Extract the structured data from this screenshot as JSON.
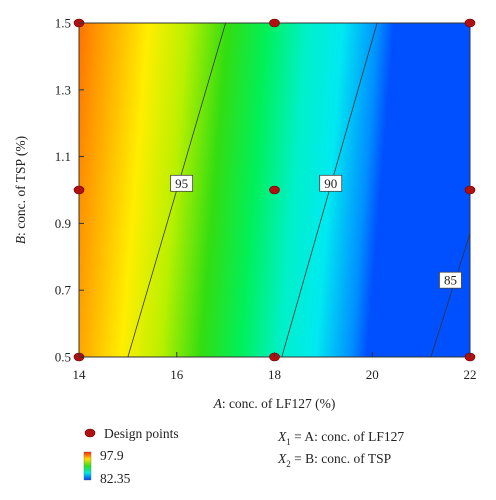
{
  "chart_data": {
    "type": "contour",
    "xlabel": {
      "prefix": "A",
      "text": ": conc. of LF127 (%)"
    },
    "ylabel": {
      "prefix": "B",
      "text": ": conc. of TSP (%)"
    },
    "xlim": [
      14,
      22
    ],
    "ylim": [
      0.5,
      1.5
    ],
    "xticks": [
      "14",
      "16",
      "18",
      "20",
      "22"
    ],
    "yticks": [
      "0.5",
      "0.7",
      "0.9",
      "1.1",
      "1.3",
      "1.5"
    ],
    "contours": [
      {
        "label": "95",
        "points": [
          [
            15.0,
            0.5
          ],
          [
            17.0,
            1.5
          ]
        ],
        "label_at": [
          16.1,
          1.02
        ]
      },
      {
        "label": "90",
        "points": [
          [
            18.15,
            0.5
          ],
          [
            20.1,
            1.5
          ]
        ],
        "label_at": [
          19.15,
          1.02
        ]
      },
      {
        "label": "85",
        "points": [
          [
            21.2,
            0.5
          ],
          [
            22.0,
            0.87
          ]
        ],
        "label_at": [
          21.6,
          0.73
        ]
      }
    ],
    "design_points": [
      [
        14,
        0.5
      ],
      [
        14,
        1.0
      ],
      [
        14,
        1.5
      ],
      [
        18,
        0.5
      ],
      [
        18,
        1.0
      ],
      [
        18,
        1.5
      ],
      [
        22,
        0.5
      ],
      [
        22,
        1.0
      ],
      [
        22,
        1.5
      ]
    ],
    "colorscale": {
      "max": "97.9",
      "min": "82.35"
    },
    "colors": {
      "design_point": "#b01010"
    }
  },
  "legend": {
    "design_points_label": "Design points",
    "x1_sym": "X",
    "x1_sub": "1",
    "x1_def": " = A: conc. of LF127",
    "x2_sym": "X",
    "x2_sub": "2",
    "x2_def": " = B: conc. of TSP"
  }
}
